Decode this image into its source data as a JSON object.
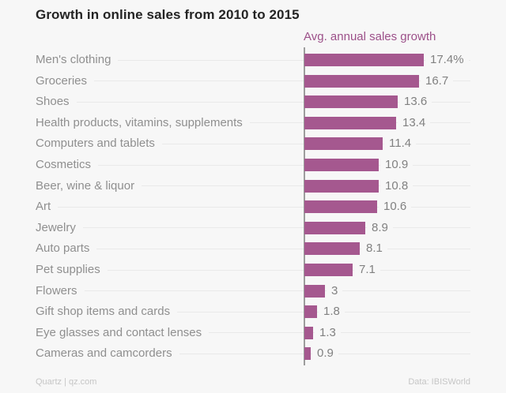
{
  "chart_data": {
    "type": "bar",
    "orientation": "horizontal",
    "title": "Growth in online sales from 2010 to 2015",
    "legend": "Avg. annual sales growth",
    "legend_position": "top-right-above-bars",
    "categories": [
      "Men's clothing",
      "Groceries",
      "Shoes",
      "Health products, vitamins, supplements",
      "Computers and tablets",
      "Cosmetics",
      "Beer, wine & liquor",
      "Art",
      "Jewelry",
      "Auto parts",
      "Pet supplies",
      "Flowers",
      "Gift shop items and cards",
      "Eye glasses and contact lenses",
      "Cameras and camcorders"
    ],
    "values": [
      17.4,
      16.7,
      13.6,
      13.4,
      11.4,
      10.9,
      10.8,
      10.6,
      8.9,
      8.1,
      7.1,
      3,
      1.8,
      1.3,
      0.9
    ],
    "value_labels": [
      "17.4%",
      "16.7",
      "13.6",
      "13.4",
      "11.4",
      "10.9",
      "10.8",
      "10.6",
      "8.9",
      "8.1",
      "7.1",
      "3",
      "1.8",
      "1.3",
      "0.9"
    ],
    "xlim": [
      0,
      18
    ],
    "grid": "faint-row-hairlines",
    "unit": "percent",
    "source": "Quartz | qz.com",
    "credit": "Data: IBISWorld",
    "colors": {
      "bar": "#a5588f",
      "legend_text": "#9c5089",
      "title_text": "#242424",
      "label_text": "#8f8f8f",
      "value_text": "#818181",
      "hairline": "#e9e9e9",
      "axis_line": "#9d9d9d",
      "background": "#f7f7f7",
      "footer_text": "#c6c6c6"
    }
  }
}
